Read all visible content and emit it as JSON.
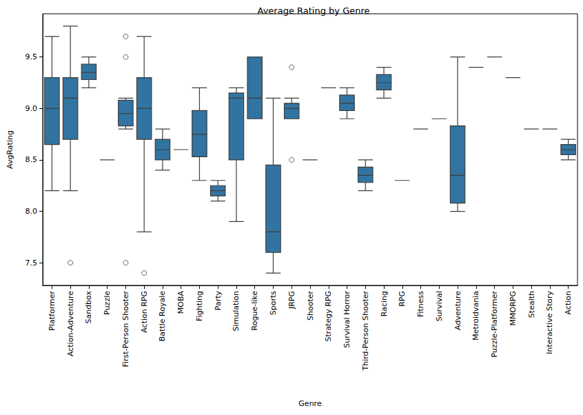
{
  "chart_data": {
    "type": "boxplot",
    "title": "Average Rating by Genre",
    "x_label": "Genre",
    "y_label": "AvgRating",
    "categories": [
      "Platformer",
      "Action-Adventure",
      "Sandbox",
      "Puzzle",
      "First-Person Shooter",
      "Action RPG",
      "Battle Royale",
      "MOBA",
      "Fighting",
      "Party",
      "Simulation",
      "Rogue-like",
      "Sports",
      "JRPG",
      "Shooter",
      "Strategy RPG",
      "Survival Horror",
      "Third-Person Shooter",
      "Racing",
      "RPG",
      "Fitness",
      "Survival",
      "Adventure",
      "Metroidvania",
      "Puzzle-Platformer",
      "MMORPG",
      "Stealth",
      "Interactive Story",
      "Action"
    ],
    "values": [
      [
        8.2,
        8.65,
        9.0,
        9.3,
        9.7
      ],
      [
        8.2,
        8.7,
        9.1,
        9.3,
        9.8
      ],
      [
        9.2,
        9.28,
        9.35,
        9.43,
        9.5
      ],
      [
        8.5,
        8.5,
        8.5,
        8.5,
        8.5
      ],
      [
        8.8,
        8.83,
        8.95,
        9.08,
        9.1
      ],
      [
        7.8,
        8.7,
        9.0,
        9.3,
        9.7
      ],
      [
        8.4,
        8.5,
        8.6,
        8.7,
        8.8
      ],
      [
        8.6,
        8.6,
        8.6,
        8.6,
        8.6
      ],
      [
        8.3,
        8.53,
        8.75,
        8.98,
        9.2
      ],
      [
        8.1,
        8.15,
        8.2,
        8.25,
        8.3
      ],
      [
        7.9,
        8.5,
        9.1,
        9.15,
        9.2
      ],
      [
        8.9,
        8.9,
        9.1,
        9.5,
        9.5
      ],
      [
        7.4,
        7.6,
        7.8,
        8.45,
        9.1
      ],
      [
        8.9,
        8.9,
        9.0,
        9.05,
        9.1
      ],
      [
        8.5,
        8.5,
        8.5,
        8.5,
        8.5
      ],
      [
        9.2,
        9.2,
        9.2,
        9.2,
        9.2
      ],
      [
        8.9,
        8.98,
        9.05,
        9.13,
        9.2
      ],
      [
        8.2,
        8.28,
        8.35,
        8.43,
        8.5
      ],
      [
        9.1,
        9.18,
        9.25,
        9.33,
        9.4
      ],
      [
        8.3,
        8.3,
        8.3,
        8.3,
        8.3
      ],
      [
        8.8,
        8.8,
        8.8,
        8.8,
        8.8
      ],
      [
        8.9,
        8.9,
        8.9,
        8.9,
        8.9
      ],
      [
        8.0,
        8.08,
        8.35,
        8.83,
        9.5
      ],
      [
        9.4,
        9.4,
        9.4,
        9.4,
        9.4
      ],
      [
        9.5,
        9.5,
        9.5,
        9.5,
        9.5
      ],
      [
        9.3,
        9.3,
        9.3,
        9.3,
        9.3
      ],
      [
        8.8,
        8.8,
        8.8,
        8.8,
        8.8
      ],
      [
        8.8,
        8.8,
        8.8,
        8.8,
        8.8
      ],
      [
        8.5,
        8.55,
        8.6,
        8.65,
        8.7
      ]
    ],
    "outliers": [
      {
        "category": "Action-Adventure",
        "value": 7.5
      },
      {
        "category": "First-Person Shooter",
        "value": 9.7
      },
      {
        "category": "First-Person Shooter",
        "value": 9.5
      },
      {
        "category": "First-Person Shooter",
        "value": 7.5
      },
      {
        "category": "Action RPG",
        "value": 7.4
      },
      {
        "category": "JRPG",
        "value": 9.4
      },
      {
        "category": "JRPG",
        "value": 8.5
      }
    ],
    "color": "#3274a1",
    "marker": "circle",
    "ylim": [
      7.28,
      9.92
    ],
    "yticks": [
      7.5,
      {
        "value": 8,
        "label": "8.0"
      },
      8.5,
      {
        "value": 9,
        "label": "9.0"
      },
      9.5
    ],
    "grid": false
  }
}
